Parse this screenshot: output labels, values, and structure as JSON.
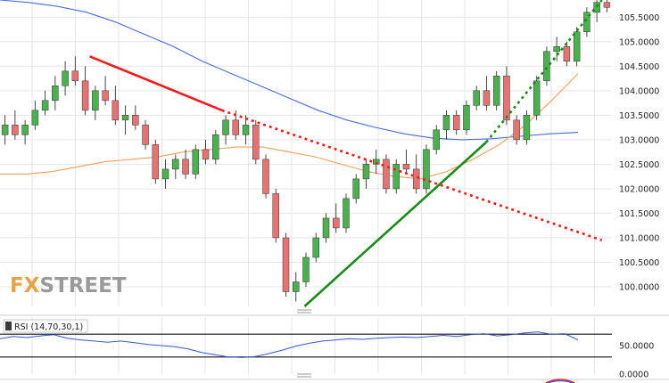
{
  "watermark": {
    "part1": "FX",
    "part2": "STREET"
  },
  "colors": {
    "bull": "#4caf50",
    "bear": "#e57373",
    "sma_blue": "#4a69e8",
    "sma_orange": "#f0a060",
    "trend_red": "#ee1c1c",
    "trend_green": "#1a8a1a",
    "rsi": "#3355dd",
    "grid": "#e6e6e6"
  },
  "chart_data": {
    "type": "candlestick",
    "ylim": [
      99.6,
      105.85
    ],
    "y_ticks": [
      "105.5000",
      "105.0000",
      "104.5000",
      "104.0000",
      "103.5000",
      "103.0000",
      "102.5000",
      "102.0000",
      "101.5000",
      "101.0000",
      "100.5000",
      "100.0000"
    ],
    "candles": [
      [
        103.1,
        103.5,
        102.9,
        103.3
      ],
      [
        103.3,
        103.6,
        103.0,
        103.1
      ],
      [
        103.1,
        103.4,
        102.9,
        103.3
      ],
      [
        103.3,
        103.8,
        103.2,
        103.6
      ],
      [
        103.6,
        104.0,
        103.5,
        103.8
      ],
      [
        103.8,
        104.3,
        103.6,
        104.1
      ],
      [
        104.1,
        104.6,
        103.9,
        104.4
      ],
      [
        104.4,
        104.7,
        104.1,
        104.2
      ],
      [
        104.2,
        104.5,
        103.5,
        103.6
      ],
      [
        103.6,
        104.1,
        103.4,
        104.0
      ],
      [
        104.0,
        104.3,
        103.7,
        103.8
      ],
      [
        103.8,
        104.1,
        103.3,
        103.4
      ],
      [
        103.4,
        103.7,
        103.1,
        103.5
      ],
      [
        103.5,
        103.7,
        103.2,
        103.3
      ],
      [
        103.3,
        103.4,
        102.8,
        102.9
      ],
      [
        102.9,
        103.0,
        102.1,
        102.2
      ],
      [
        102.2,
        102.6,
        102.0,
        102.4
      ],
      [
        102.4,
        102.7,
        102.2,
        102.6
      ],
      [
        102.6,
        102.8,
        102.2,
        102.3
      ],
      [
        102.3,
        102.9,
        102.2,
        102.8
      ],
      [
        102.8,
        103.0,
        102.5,
        102.6
      ],
      [
        102.6,
        103.2,
        102.5,
        103.1
      ],
      [
        103.1,
        103.5,
        102.9,
        103.4
      ],
      [
        103.4,
        103.6,
        103.0,
        103.1
      ],
      [
        103.1,
        103.5,
        102.9,
        103.3
      ],
      [
        103.3,
        103.4,
        102.5,
        102.6
      ],
      [
        102.6,
        102.7,
        101.8,
        101.9
      ],
      [
        101.9,
        102.0,
        100.9,
        101.0
      ],
      [
        101.0,
        101.1,
        99.8,
        99.9
      ],
      [
        99.9,
        100.3,
        99.7,
        100.1
      ],
      [
        100.1,
        100.7,
        100.0,
        100.6
      ],
      [
        100.6,
        101.1,
        100.5,
        101.0
      ],
      [
        101.0,
        101.5,
        100.9,
        101.4
      ],
      [
        101.4,
        101.7,
        101.1,
        101.2
      ],
      [
        101.2,
        101.9,
        101.1,
        101.8
      ],
      [
        101.8,
        102.3,
        101.7,
        102.2
      ],
      [
        102.2,
        102.6,
        102.0,
        102.5
      ],
      [
        102.5,
        102.8,
        102.3,
        102.6
      ],
      [
        102.6,
        102.7,
        101.9,
        102.0
      ],
      [
        102.0,
        102.6,
        101.9,
        102.5
      ],
      [
        102.5,
        102.8,
        102.3,
        102.4
      ],
      [
        102.4,
        102.7,
        101.9,
        102.0
      ],
      [
        102.0,
        102.9,
        101.9,
        102.8
      ],
      [
        102.8,
        103.3,
        102.7,
        103.2
      ],
      [
        103.2,
        103.6,
        103.0,
        103.5
      ],
      [
        103.5,
        103.6,
        103.1,
        103.2
      ],
      [
        103.2,
        103.8,
        103.1,
        103.7
      ],
      [
        103.7,
        104.1,
        103.6,
        104.0
      ],
      [
        104.0,
        104.3,
        103.6,
        103.7
      ],
      [
        103.7,
        104.4,
        103.6,
        104.3
      ],
      [
        104.3,
        104.5,
        103.3,
        103.4
      ],
      [
        103.4,
        103.5,
        102.9,
        103.0
      ],
      [
        103.0,
        103.6,
        102.9,
        103.5
      ],
      [
        103.5,
        104.3,
        103.4,
        104.2
      ],
      [
        104.2,
        104.9,
        104.1,
        104.8
      ],
      [
        104.8,
        105.1,
        104.6,
        104.9
      ],
      [
        104.9,
        105.0,
        104.5,
        104.6
      ],
      [
        104.6,
        105.3,
        104.5,
        105.2
      ],
      [
        105.2,
        105.7,
        105.1,
        105.6
      ],
      [
        105.6,
        105.9,
        105.4,
        105.8
      ],
      [
        105.8,
        105.9,
        105.6,
        105.7
      ]
    ],
    "sma_blue": [
      105.85,
      105.8,
      105.72,
      105.6,
      105.4,
      105.15,
      104.9,
      104.6,
      104.35,
      104.1,
      103.85,
      103.6,
      103.4,
      103.25,
      103.12,
      103.03,
      103.0,
      103.02,
      103.07,
      103.12,
      103.15
    ],
    "sma_orange": [
      102.3,
      102.3,
      102.35,
      102.45,
      102.55,
      102.6,
      102.65,
      102.75,
      102.8,
      102.85,
      102.85,
      102.75,
      102.65,
      102.5,
      102.35,
      102.25,
      102.2,
      102.35,
      102.6,
      102.9,
      103.3,
      103.8,
      104.35
    ],
    "trendline_resistance": {
      "x": [
        5,
        13,
        36
      ],
      "y": [
        104.7,
        103.6,
        100.95
      ]
    },
    "trendline_support": {
      "x": [
        18,
        29,
        36
      ],
      "y": [
        99.6,
        102.95,
        105.85
      ]
    },
    "rsi": {
      "label": "RSI (14,70,30,1)",
      "levels": [
        70,
        30
      ],
      "ticks": [
        "50.0000",
        "0.0000"
      ],
      "values": [
        62,
        66,
        64,
        67,
        69,
        63,
        60,
        58,
        56,
        58,
        55,
        52,
        50,
        48,
        44,
        38,
        34,
        30,
        29,
        31,
        36,
        42,
        49,
        54,
        58,
        60,
        62,
        61,
        63,
        64,
        65,
        64,
        66,
        68,
        66,
        69,
        71,
        67,
        69,
        72,
        74,
        70,
        71,
        60
      ]
    }
  }
}
